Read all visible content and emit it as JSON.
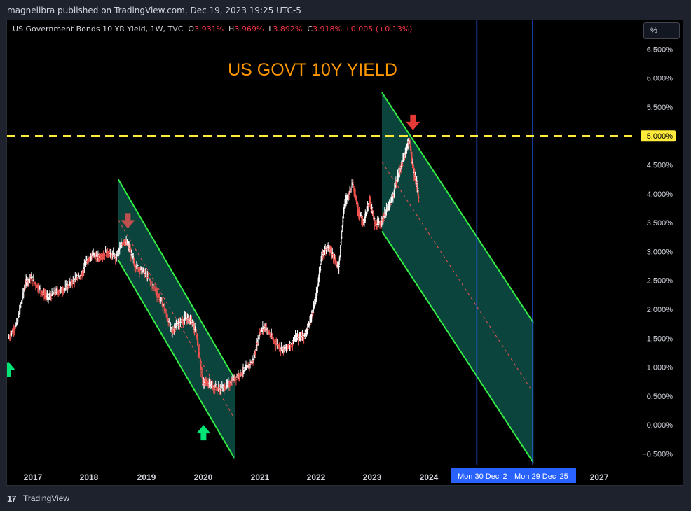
{
  "header": {
    "published": "magnelibra published on TradingView.com, Dec 19, 2023 19:25 UTC-5"
  },
  "legend": {
    "symbol": "US Government Bonds 10 YR Yield, 1W, TVC",
    "o_label": "O",
    "o_value": "3.931%",
    "h_label": "H",
    "h_value": "3.969%",
    "l_label": "L",
    "l_value": "3.892%",
    "c_label": "C",
    "c_value": "3.918%",
    "change": "+0.005 (+0.13%)"
  },
  "scale_button": "%",
  "footer": {
    "logo": "17",
    "brand": "TradingView"
  },
  "colors": {
    "background": "#000000",
    "up": "#ffffff",
    "down": "#ef5350",
    "channel_line": "#33ee44",
    "channel_fill": "#0b4b44",
    "level_line": "#ffeb3b",
    "vertical_line": "#2962ff",
    "title": "#ff9800",
    "arrow_down": "#e53935",
    "arrow_up": "#00e676"
  },
  "chart_data": {
    "type": "line",
    "title": "US GOVT 10Y YIELD",
    "subtitle": "",
    "xlabel": "",
    "ylabel": "",
    "xlim": [
      2016.68,
      2027.85
    ],
    "ylim": [
      -0.7,
      7.0
    ],
    "x_ticks": [
      "2017",
      "2018",
      "2019",
      "2020",
      "2021",
      "2022",
      "2023",
      "2024",
      "2027"
    ],
    "y_ticks": [
      "6.500%",
      "6.000%",
      "5.500%",
      "4.500%",
      "4.000%",
      "3.500%",
      "3.000%",
      "2.500%",
      "2.000%",
      "1.500%",
      "1.000%",
      "0.500%",
      "0.000%",
      "−0.500%"
    ],
    "y_tick_values": [
      6.5,
      6.0,
      5.5,
      4.5,
      4.0,
      3.5,
      3.0,
      2.5,
      2.0,
      1.5,
      1.0,
      0.5,
      0.0,
      -0.5
    ],
    "grid": false,
    "series": [
      {
        "x": [
          2016.7,
          2016.85,
          2017.0,
          2017.1,
          2017.25,
          2017.4,
          2017.55,
          2017.7,
          2017.85,
          2018.0,
          2018.1,
          2018.2,
          2018.3,
          2018.45,
          2018.6,
          2018.75,
          2018.85,
          2018.95,
          2019.1,
          2019.3,
          2019.45,
          2019.6,
          2019.7,
          2019.85,
          2019.95,
          2020.05,
          2020.15,
          2020.2,
          2020.3,
          2020.45,
          2020.6,
          2020.75,
          2020.9,
          2021.05,
          2021.15,
          2021.25,
          2021.4,
          2021.55,
          2021.65,
          2021.8,
          2021.95,
          2022.05,
          2022.15,
          2022.25,
          2022.35,
          2022.45,
          2022.55,
          2022.65,
          2022.8,
          2022.9,
          2023.0,
          2023.1,
          2023.2,
          2023.3,
          2023.4,
          2023.5,
          2023.6,
          2023.7,
          2023.8,
          2023.88,
          2023.93,
          2023.97
        ],
        "values": [
          1.5,
          1.75,
          2.45,
          2.55,
          2.35,
          2.2,
          2.3,
          2.35,
          2.5,
          2.6,
          2.85,
          2.95,
          2.9,
          3.0,
          2.9,
          3.2,
          3.05,
          2.75,
          2.65,
          2.35,
          2.05,
          1.6,
          1.75,
          1.85,
          1.8,
          1.5,
          0.7,
          0.75,
          0.68,
          0.62,
          0.7,
          0.85,
          0.95,
          1.15,
          1.6,
          1.7,
          1.45,
          1.3,
          1.35,
          1.5,
          1.55,
          1.8,
          2.2,
          2.9,
          3.1,
          2.95,
          2.7,
          3.8,
          4.2,
          3.7,
          3.5,
          3.9,
          3.45,
          3.5,
          3.7,
          3.9,
          4.3,
          4.6,
          4.95,
          4.4,
          4.2,
          3.92
        ]
      }
    ],
    "annotations": {
      "horizontal_level": 5.0,
      "horizontal_level_label": "5.000%",
      "vertical_lines": [
        2025.0,
        2025.99
      ],
      "vertical_line_labels": [
        "Mon 30 Dec '2",
        "Mon 29 Dec '25"
      ],
      "channels": [
        {
          "start": {
            "x": 2018.65,
            "upper": 4.25,
            "lower": 2.85
          },
          "end": {
            "x": 2020.71,
            "upper": 0.8,
            "lower": -0.58
          }
        },
        {
          "start": {
            "x": 2023.32,
            "upper": 5.75,
            "lower": 3.35
          },
          "end": {
            "x": 2026.0,
            "upper": 1.77,
            "lower": -0.65
          }
        }
      ],
      "arrows": [
        {
          "direction": "down",
          "x": 2018.82,
          "y": 3.4
        },
        {
          "direction": "up",
          "x": 2020.16,
          "y": 0.0
        },
        {
          "direction": "down",
          "x": 2023.87,
          "y": 5.1
        },
        {
          "direction": "up",
          "x": 2016.7,
          "y": 1.1
        }
      ]
    }
  }
}
